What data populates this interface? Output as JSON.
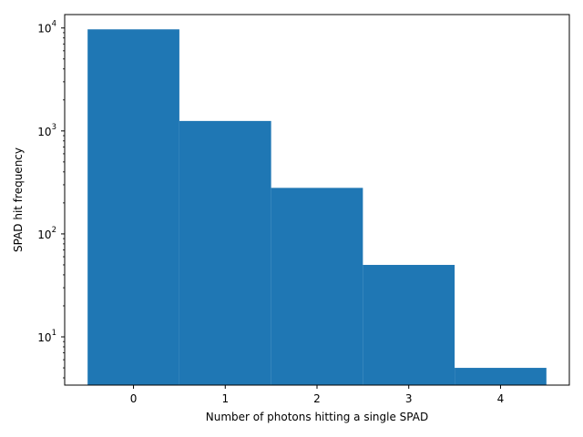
{
  "chart_data": {
    "type": "bar",
    "title": "",
    "xlabel": "Number of photons hitting a single SPAD",
    "ylabel": "SPAD hit frequency",
    "y_scale": "log",
    "categories": [
      0,
      1,
      2,
      3,
      4
    ],
    "values": [
      9700,
      1250,
      280,
      50,
      5
    ],
    "xlim": [
      -0.75,
      4.75
    ],
    "ylim": [
      3.4,
      13500
    ],
    "x_ticks": [
      0,
      1,
      2,
      3,
      4
    ],
    "y_ticks": [
      {
        "base": "10",
        "exp": "1",
        "value": 10
      },
      {
        "base": "10",
        "exp": "2",
        "value": 100
      },
      {
        "base": "10",
        "exp": "3",
        "value": 1000
      },
      {
        "base": "10",
        "exp": "4",
        "value": 10000
      }
    ],
    "bar_width": 1.0,
    "bar_color": "#1f77b4",
    "grid": false,
    "legend": "none"
  }
}
